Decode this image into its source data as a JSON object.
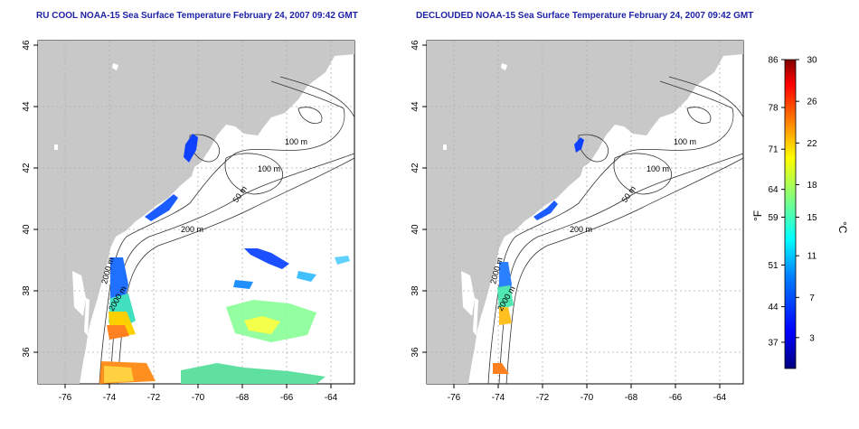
{
  "titles": {
    "left": "RU COOL NOAA-15 Sea Surface Temperature February 24, 2007 09:42 GMT",
    "right": "DECLOUDED NOAA-15 Sea Surface Temperature February 24, 2007 09:42 GMT"
  },
  "map_axes": {
    "lon_ticks": [
      "-76",
      "-74",
      "-72",
      "-70",
      "-68",
      "-66",
      "-64"
    ],
    "lat_ticks": [
      "36",
      "38",
      "40",
      "42",
      "44",
      "46"
    ]
  },
  "contour_labels": [
    "100 m",
    "100 m",
    "50 m",
    "200 m",
    "2000 m",
    "2000 m"
  ],
  "colorbar": {
    "fahrenheit_ticks": [
      "86",
      "78",
      "71",
      "64",
      "59",
      "51",
      "44",
      "37"
    ],
    "celsius_ticks": [
      "30",
      "26",
      "22",
      "18",
      "15",
      "11",
      "7",
      "3"
    ],
    "f_label": "°F",
    "c_label": "°C",
    "colors": [
      "#00007f",
      "#0000ff",
      "#0080ff",
      "#00ffff",
      "#80ff80",
      "#ffff00",
      "#ff8000",
      "#ff0000",
      "#7f0000"
    ]
  },
  "colors": {
    "land": "#c8c8c8",
    "title": "#1e22a6",
    "grid": "#b0b0b0"
  }
}
